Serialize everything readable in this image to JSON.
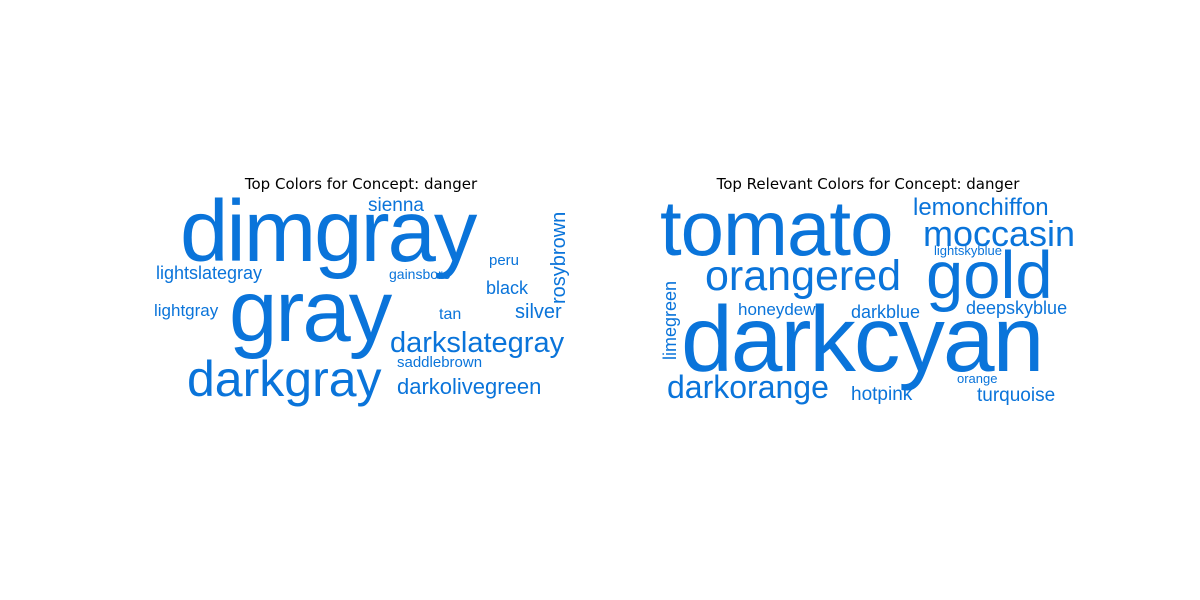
{
  "theme": {
    "word_color": "#0a74da",
    "background": "#ffffff",
    "title_color": "#000000"
  },
  "panels": [
    {
      "title": "Top Colors for Concept: danger",
      "words": [
        {
          "text": "dimgray",
          "orientation": "horizontal"
        },
        {
          "text": "sienna",
          "orientation": "horizontal"
        },
        {
          "text": "rosybrown",
          "orientation": "vertical"
        },
        {
          "text": "lightslategray",
          "orientation": "horizontal"
        },
        {
          "text": "gainsboro",
          "orientation": "horizontal"
        },
        {
          "text": "peru",
          "orientation": "horizontal"
        },
        {
          "text": "black",
          "orientation": "horizontal"
        },
        {
          "text": "gray",
          "orientation": "horizontal"
        },
        {
          "text": "lightgray",
          "orientation": "horizontal"
        },
        {
          "text": "tan",
          "orientation": "horizontal"
        },
        {
          "text": "silver",
          "orientation": "horizontal"
        },
        {
          "text": "darkslategray",
          "orientation": "horizontal"
        },
        {
          "text": "saddlebrown",
          "orientation": "horizontal"
        },
        {
          "text": "darkgray",
          "orientation": "horizontal"
        },
        {
          "text": "darkolivegreen",
          "orientation": "horizontal"
        }
      ]
    },
    {
      "title": "Top Relevant Colors for Concept: danger",
      "words": [
        {
          "text": "tomato",
          "orientation": "horizontal"
        },
        {
          "text": "lemonchiffon",
          "orientation": "horizontal"
        },
        {
          "text": "moccasin",
          "orientation": "horizontal"
        },
        {
          "text": "lightskyblue",
          "orientation": "horizontal"
        },
        {
          "text": "orangered",
          "orientation": "horizontal"
        },
        {
          "text": "gold",
          "orientation": "horizontal"
        },
        {
          "text": "limegreen",
          "orientation": "vertical"
        },
        {
          "text": "honeydew",
          "orientation": "horizontal"
        },
        {
          "text": "darkblue",
          "orientation": "horizontal"
        },
        {
          "text": "deepskyblue",
          "orientation": "horizontal"
        },
        {
          "text": "darkcyan",
          "orientation": "horizontal"
        },
        {
          "text": "orange",
          "orientation": "horizontal"
        },
        {
          "text": "darkorange",
          "orientation": "horizontal"
        },
        {
          "text": "hotpink",
          "orientation": "horizontal"
        },
        {
          "text": "turquoise",
          "orientation": "horizontal"
        }
      ]
    }
  ]
}
